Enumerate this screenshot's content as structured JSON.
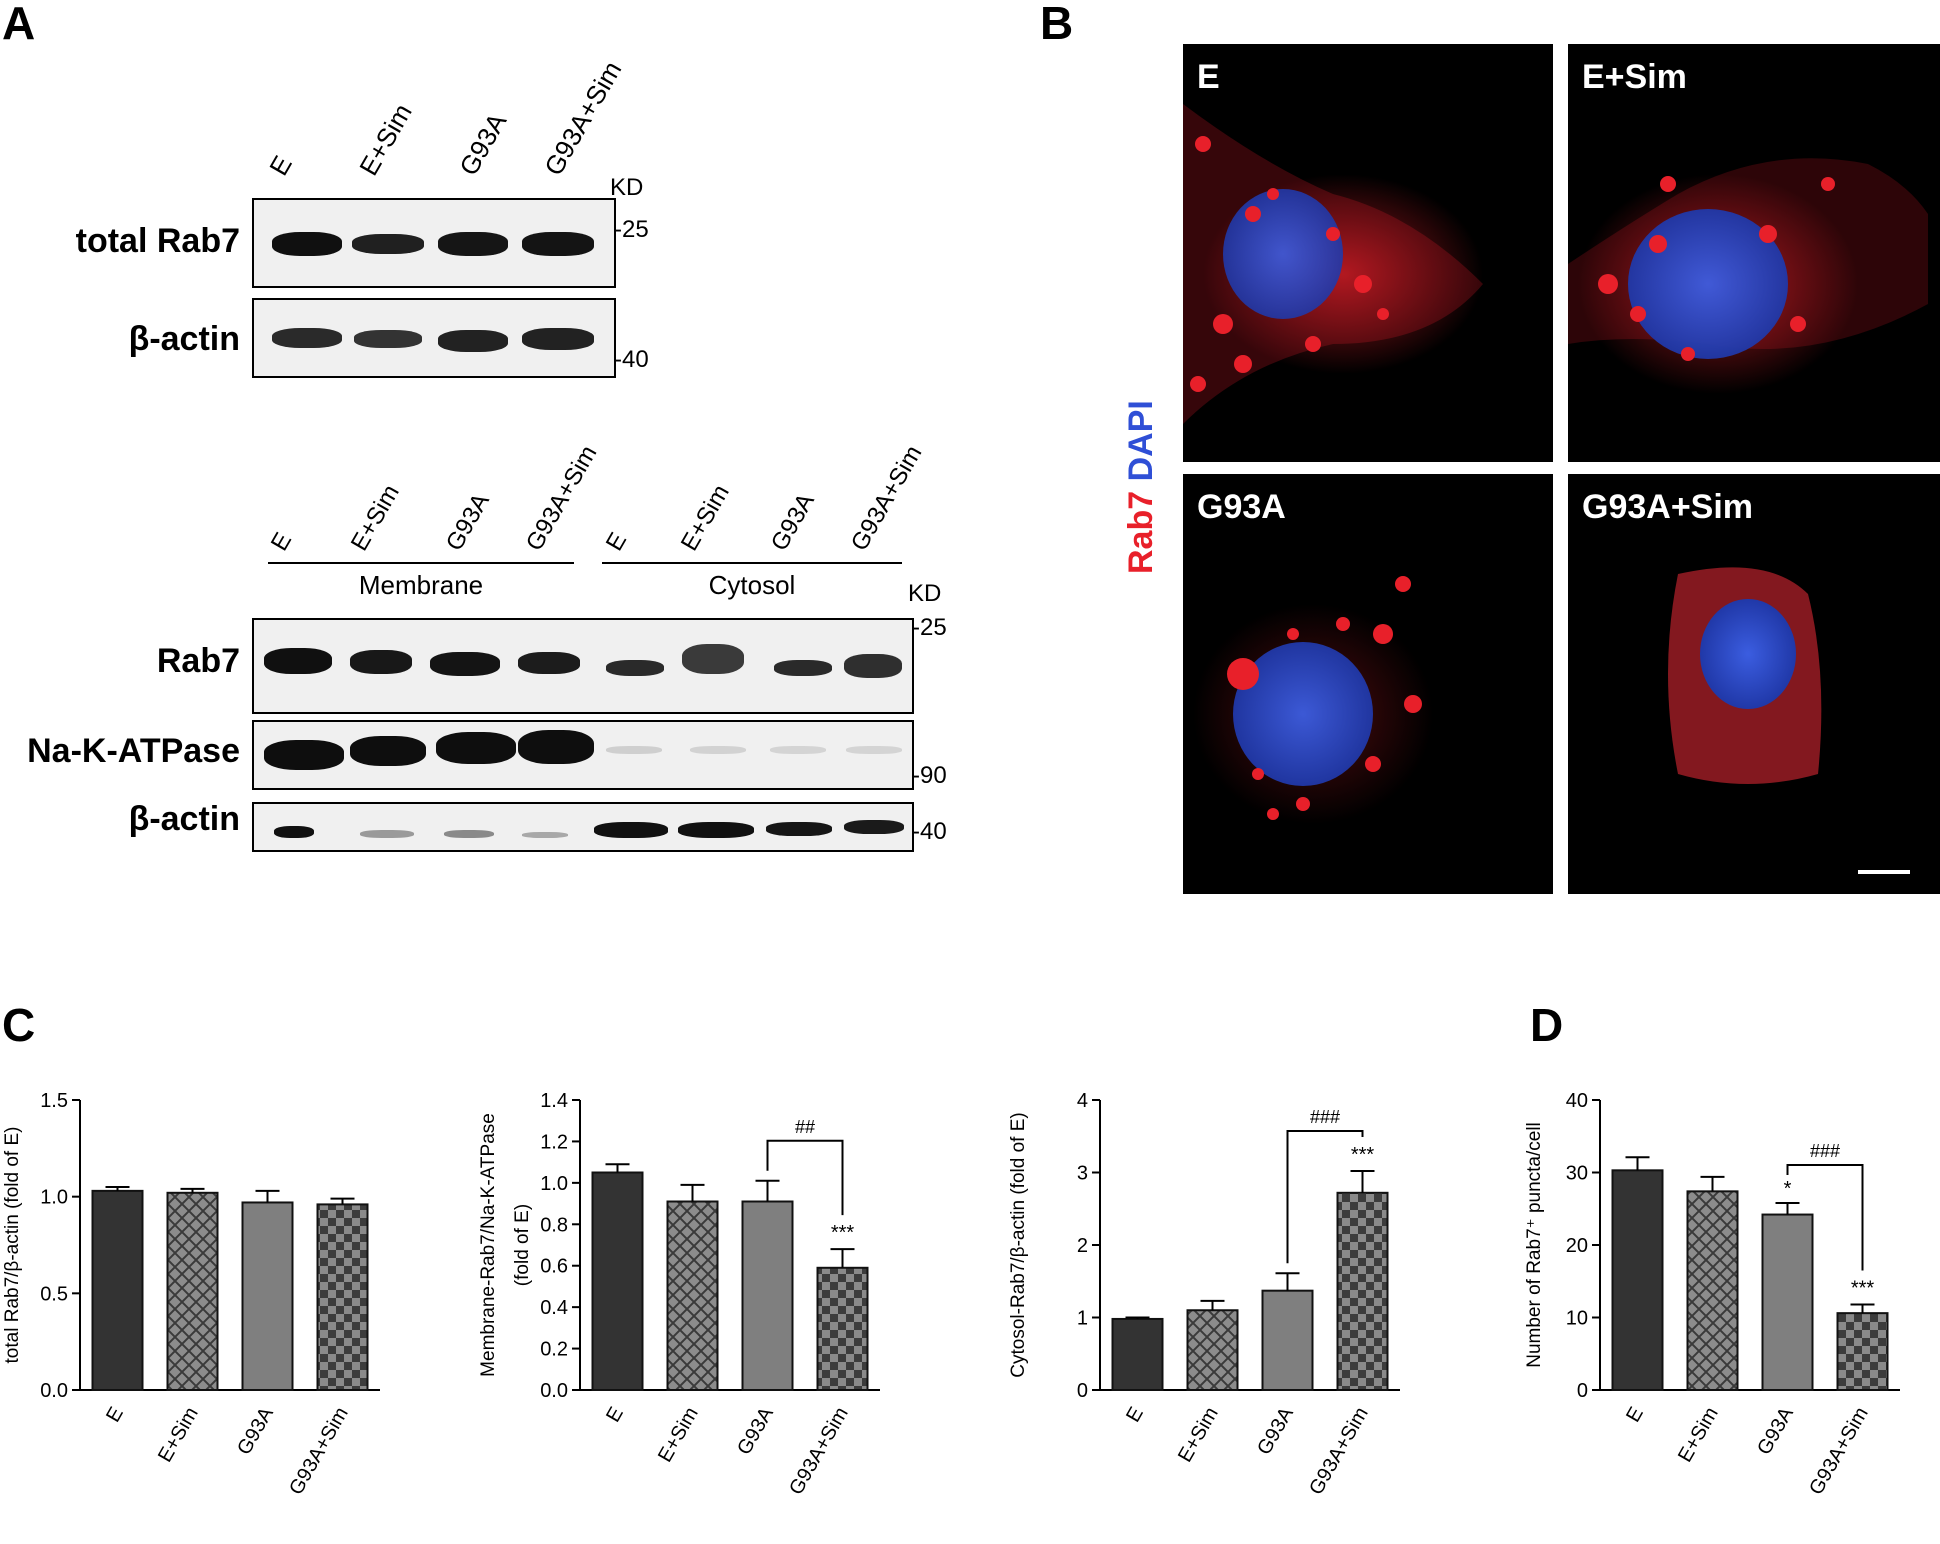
{
  "panels": {
    "a": "A",
    "b": "B",
    "c": "C",
    "d": "D"
  },
  "blot_top": {
    "lanes": [
      "E",
      "E+Sim",
      "G93A",
      "G93A+Sim"
    ],
    "kd": "KD",
    "rows": [
      {
        "name": "total Rab7",
        "marker": "-25"
      },
      {
        "name": "β-actin",
        "marker": "-40"
      }
    ]
  },
  "blot_bottom": {
    "lanes": [
      "E",
      "E+Sim",
      "G93A",
      "G93A+Sim",
      "E",
      "E+Sim",
      "G93A",
      "G93A+Sim"
    ],
    "groups": [
      "Membrane",
      "Cytosol"
    ],
    "kd": "KD",
    "rows": [
      {
        "name": "Rab7",
        "marker": "-25"
      },
      {
        "name": "Na-K-ATPase",
        "marker": "-90"
      },
      {
        "name": "β-actin",
        "marker": "-40"
      }
    ]
  },
  "micro": {
    "stain_red": "Rab7",
    "stain_blue": "DAPI",
    "tiles": [
      "E",
      "E+Sim",
      "G93A",
      "G93A+Sim"
    ],
    "colors": {
      "red": "#e8202a",
      "blue": "#2f4fd6"
    }
  },
  "chart_data": [
    {
      "type": "bar",
      "categories": [
        "E",
        "E+Sim",
        "G93A",
        "G93A+Sim"
      ],
      "values": [
        1.03,
        1.02,
        0.97,
        0.96
      ],
      "errors": [
        0.02,
        0.02,
        0.06,
        0.03
      ],
      "ylabel": "total Rab7/β-actin (fold of E)",
      "ylim": [
        0,
        1.5
      ],
      "yticks": [
        "0.0",
        "0.5",
        "1.0",
        "1.5"
      ],
      "annotations": []
    },
    {
      "type": "bar",
      "categories": [
        "E",
        "E+Sim",
        "G93A",
        "G93A+Sim"
      ],
      "values": [
        1.05,
        0.91,
        0.91,
        0.59
      ],
      "errors": [
        0.04,
        0.08,
        0.1,
        0.09
      ],
      "ylabel": "Membrane-Rab7/Na-K-ATPase",
      "ylabel2": "(fold of E)",
      "ylim": [
        0,
        1.4
      ],
      "yticks": [
        "0.0",
        "0.2",
        "0.4",
        "0.6",
        "0.8",
        "1.0",
        "1.2",
        "1.4"
      ],
      "annotations": [
        "***",
        "##"
      ]
    },
    {
      "type": "bar",
      "categories": [
        "E",
        "E+Sim",
        "G93A",
        "G93A+Sim"
      ],
      "values": [
        0.98,
        1.1,
        1.37,
        2.72
      ],
      "errors": [
        0.02,
        0.13,
        0.24,
        0.3
      ],
      "ylabel": "Cytosol-Rab7/β-actin (fold of E)",
      "ylim": [
        0,
        4
      ],
      "yticks": [
        "0",
        "1",
        "2",
        "3",
        "4"
      ],
      "annotations": [
        "***",
        "###"
      ]
    },
    {
      "type": "bar",
      "categories": [
        "E",
        "E+Sim",
        "G93A",
        "G93A+Sim"
      ],
      "values": [
        30.3,
        27.4,
        24.2,
        10.6
      ],
      "errors": [
        1.8,
        2.0,
        1.6,
        1.2
      ],
      "ylabel": "Number of Rab7⁺ puncta/cell",
      "ylim": [
        0,
        40
      ],
      "yticks": [
        "0",
        "10",
        "20",
        "30",
        "40"
      ],
      "annotations": [
        "*",
        "***",
        "###"
      ]
    }
  ],
  "colors": {
    "bar1": "#333333",
    "bar2": "#6e6e6e",
    "bar3": "#8a8a8a",
    "bar4": "#555555"
  }
}
